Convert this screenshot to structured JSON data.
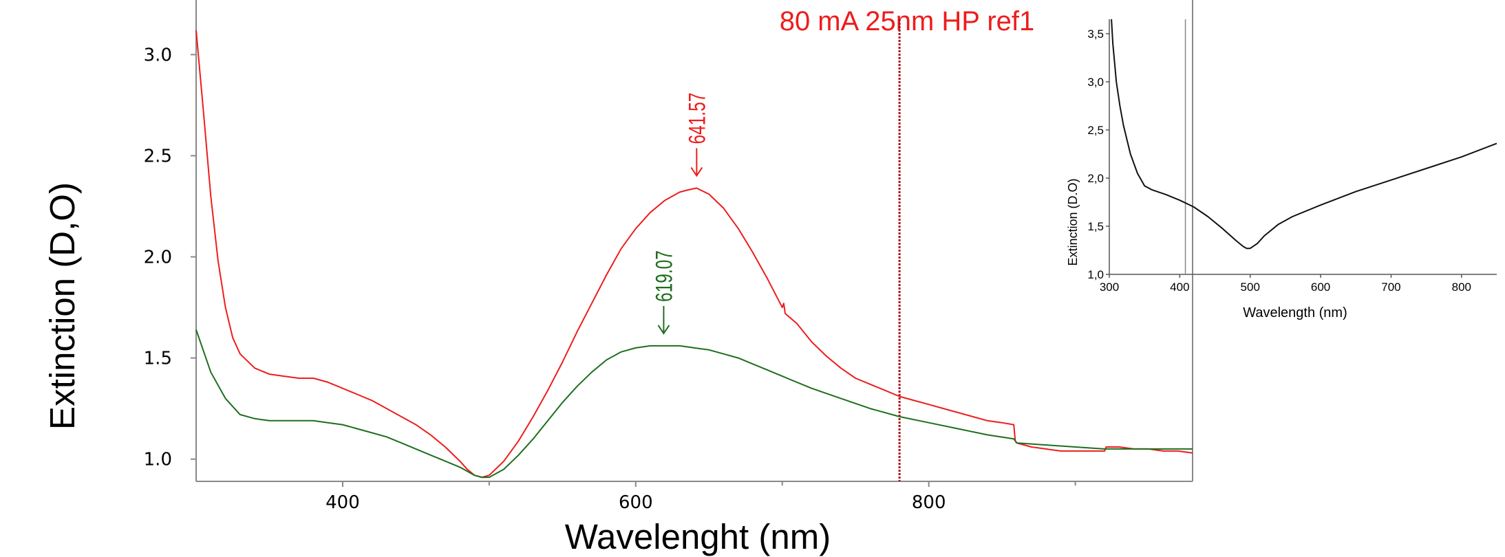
{
  "chart_data": [
    {
      "type": "line",
      "title": "80 mA 25nm HP ref1",
      "xlabel": "Wavelenght (nm)",
      "ylabel": "Extinction (D,O)",
      "xlim": [
        300,
        980
      ],
      "ylim": [
        0.89,
        3.27
      ],
      "x_ticks": [
        400,
        600,
        800
      ],
      "x_minor_ticks": [
        500,
        700,
        900
      ],
      "y_ticks": [
        "1.0",
        "1.5",
        "2.0",
        "2.5",
        "3.0"
      ],
      "grid": false,
      "colors": {
        "red": "#ee1c1c",
        "green": "#1e6e1e",
        "axis": "#888888",
        "marker_line": "#b01010"
      },
      "vertical_marker_x": 780,
      "series": [
        {
          "color": "#ee1c1c",
          "x": [
            300,
            305,
            310,
            315,
            320,
            325,
            330,
            340,
            350,
            360,
            370,
            380,
            390,
            400,
            410,
            420,
            430,
            440,
            450,
            460,
            470,
            480,
            485,
            490,
            495,
            500,
            510,
            520,
            530,
            540,
            550,
            560,
            570,
            580,
            590,
            600,
            610,
            620,
            630,
            635,
            641.57,
            650,
            660,
            670,
            680,
            690,
            700,
            701,
            702,
            710,
            720,
            730,
            740,
            750,
            760,
            770,
            780,
            790,
            800,
            810,
            820,
            830,
            840,
            850,
            858,
            859,
            860,
            870,
            880,
            890,
            900,
            910,
            920,
            921,
            930,
            940,
            950,
            960,
            970,
            980
          ],
          "y": [
            3.12,
            2.72,
            2.3,
            1.98,
            1.75,
            1.6,
            1.52,
            1.45,
            1.42,
            1.41,
            1.4,
            1.4,
            1.38,
            1.35,
            1.32,
            1.29,
            1.25,
            1.21,
            1.17,
            1.12,
            1.06,
            0.99,
            0.95,
            0.92,
            0.91,
            0.92,
            0.99,
            1.09,
            1.21,
            1.34,
            1.48,
            1.63,
            1.77,
            1.91,
            2.04,
            2.14,
            2.22,
            2.28,
            2.32,
            2.33,
            2.34,
            2.31,
            2.24,
            2.14,
            2.02,
            1.89,
            1.75,
            1.77,
            1.72,
            1.67,
            1.58,
            1.51,
            1.45,
            1.4,
            1.37,
            1.34,
            1.31,
            1.29,
            1.27,
            1.25,
            1.23,
            1.21,
            1.19,
            1.18,
            1.17,
            1.09,
            1.08,
            1.06,
            1.05,
            1.04,
            1.04,
            1.04,
            1.04,
            1.06,
            1.06,
            1.05,
            1.05,
            1.04,
            1.04,
            1.03
          ]
        },
        {
          "color": "#1e6e1e",
          "x": [
            300,
            310,
            320,
            330,
            340,
            350,
            360,
            370,
            380,
            390,
            400,
            410,
            420,
            430,
            440,
            450,
            460,
            470,
            480,
            490,
            495,
            500,
            510,
            520,
            530,
            540,
            550,
            560,
            570,
            580,
            590,
            600,
            610,
            619.07,
            625,
            630,
            640,
            650,
            660,
            670,
            680,
            690,
            700,
            720,
            740,
            760,
            780,
            800,
            820,
            840,
            858,
            860,
            880,
            900,
            920,
            940,
            960,
            980
          ],
          "y": [
            1.64,
            1.43,
            1.3,
            1.22,
            1.2,
            1.19,
            1.19,
            1.19,
            1.19,
            1.18,
            1.17,
            1.15,
            1.13,
            1.11,
            1.08,
            1.05,
            1.02,
            0.99,
            0.96,
            0.92,
            0.91,
            0.91,
            0.95,
            1.02,
            1.1,
            1.19,
            1.28,
            1.36,
            1.43,
            1.49,
            1.53,
            1.55,
            1.56,
            1.56,
            1.56,
            1.56,
            1.55,
            1.54,
            1.52,
            1.5,
            1.47,
            1.44,
            1.41,
            1.35,
            1.3,
            1.25,
            1.21,
            1.18,
            1.15,
            1.12,
            1.1,
            1.08,
            1.07,
            1.06,
            1.05,
            1.05,
            1.05,
            1.05
          ]
        }
      ],
      "annotations": [
        {
          "text": "641.57",
          "x": 641.57,
          "y": 2.34,
          "color": "#ee1c1c"
        },
        {
          "text": "619.07",
          "x": 619.07,
          "y": 1.56,
          "color": "#1e6e1e"
        }
      ]
    },
    {
      "type": "line",
      "title": "",
      "xlabel": "Wavelength (nm)",
      "ylabel": "Extinction (D.O)",
      "xlim": [
        300,
        850
      ],
      "ylim": [
        1.0,
        3.65
      ],
      "x_ticks": [
        "300",
        "400",
        "500",
        "600",
        "700",
        "800"
      ],
      "y_ticks": [
        "1,0",
        "1,5",
        "2,0",
        "2,5",
        "3,0",
        "3,5"
      ],
      "vertical_marker_x": 408,
      "grid": false,
      "series": [
        {
          "color": "#111111",
          "x": [
            303,
            305,
            310,
            315,
            320,
            330,
            340,
            350,
            360,
            380,
            400,
            420,
            440,
            460,
            480,
            490,
            495,
            500,
            510,
            520,
            540,
            560,
            580,
            600,
            650,
            700,
            750,
            800,
            850
          ],
          "y": [
            3.65,
            3.4,
            3.0,
            2.75,
            2.55,
            2.25,
            2.05,
            1.92,
            1.88,
            1.83,
            1.77,
            1.7,
            1.6,
            1.48,
            1.35,
            1.29,
            1.27,
            1.27,
            1.32,
            1.4,
            1.52,
            1.6,
            1.66,
            1.72,
            1.86,
            1.98,
            2.1,
            2.22,
            2.36
          ]
        }
      ]
    }
  ]
}
